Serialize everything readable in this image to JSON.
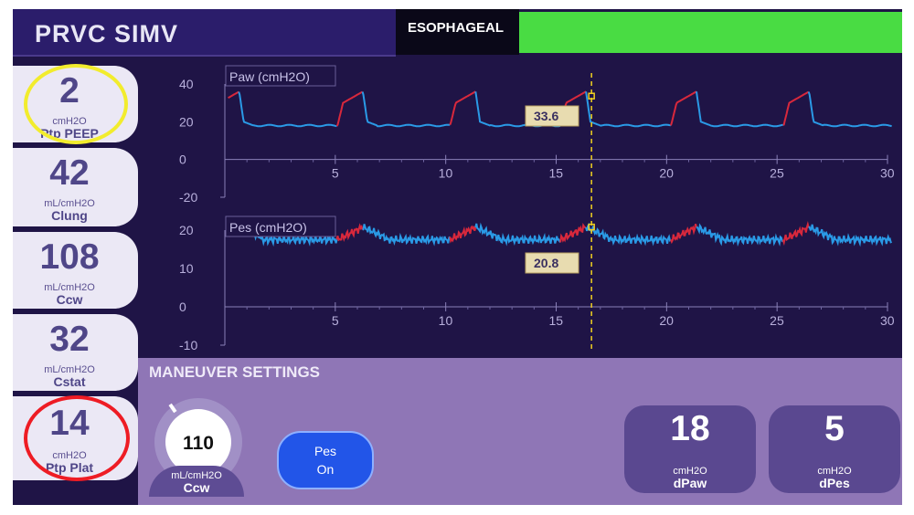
{
  "header": {
    "mode_title": "PRVC SIMV",
    "esophageal_label": "ESOPHAGEAL",
    "status_color": "#49dc43"
  },
  "tiles": [
    {
      "value": "2",
      "unit": "cmH2O",
      "name": "Ptp PEEP"
    },
    {
      "value": "42",
      "unit": "mL/cmH2O",
      "name": "Clung"
    },
    {
      "value": "108",
      "unit": "mL/cmH2O",
      "name": "Ccw"
    },
    {
      "value": "32",
      "unit": "mL/cmH2O",
      "name": "Cstat"
    },
    {
      "value": "14",
      "unit": "cmH2O",
      "name": "Ptp Plat"
    }
  ],
  "annotations": {
    "yellow_ring": "#f2ec2d",
    "red_ring": "#ee1c24"
  },
  "waveforms": {
    "cursor_color": "#f0d020",
    "inspiration_color": "#d8283c",
    "expiration_color": "#2a9ae6",
    "paw": {
      "label": "Paw (cmH2O)",
      "y_ticks": [
        "40",
        "20",
        "0",
        "-20"
      ],
      "x_ticks": [
        "5",
        "10",
        "15",
        "20",
        "25",
        "30"
      ],
      "ylim": [
        -20,
        40
      ],
      "xlim": [
        0,
        30
      ],
      "cursor_value": "33.6"
    },
    "pes": {
      "label": "Pes (cmH2O)",
      "y_ticks": [
        "20",
        "10",
        "0",
        "-10"
      ],
      "x_ticks": [
        "5",
        "10",
        "15",
        "20",
        "25",
        "30"
      ],
      "ylim": [
        -10,
        20
      ],
      "xlim": [
        0,
        30
      ],
      "cursor_value": "20.8"
    },
    "cursor_time": 16.6
  },
  "settings": {
    "title": "MANEUVER SETTINGS",
    "knob": {
      "value": "110",
      "unit": "mL/cmH2O",
      "name": "Ccw"
    },
    "pes_button": {
      "line1": "Pes",
      "line2": "On"
    },
    "dpaw": {
      "value": "18",
      "unit": "cmH2O",
      "name": "dPaw"
    },
    "dpes": {
      "value": "5",
      "unit": "cmH2O",
      "name": "dPes"
    }
  }
}
